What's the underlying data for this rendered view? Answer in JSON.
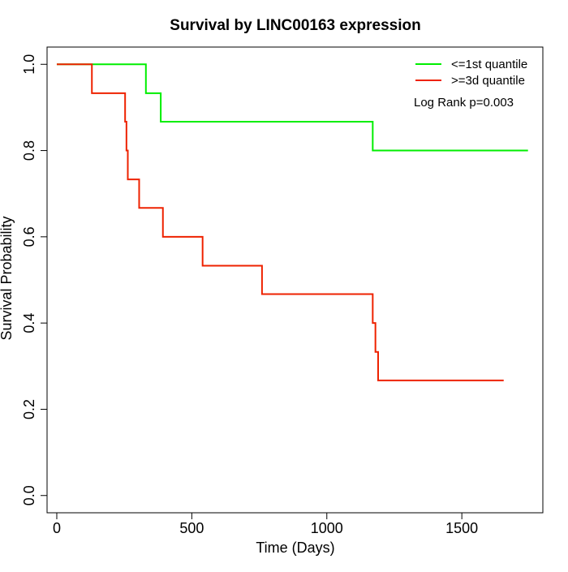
{
  "chart_data": {
    "type": "line",
    "title": "Survival by LINC00163 expression",
    "xlabel": "Time (Days)",
    "ylabel": "Survival Probability",
    "xlim": [
      -36,
      1800
    ],
    "ylim": [
      -0.04,
      1.04
    ],
    "x_ticks": [
      0,
      500,
      1000,
      1500
    ],
    "y_ticks": [
      0.0,
      0.2,
      0.4,
      0.6,
      0.8,
      1.0
    ],
    "x_tick_labels": [
      "0",
      "500",
      "1000",
      "1500"
    ],
    "y_tick_labels": [
      "0.0",
      "0.2",
      "0.4",
      "0.6",
      "0.8",
      "1.0"
    ],
    "grid": false,
    "legend_position": "top-right",
    "annotation": "Log Rank p=0.003",
    "series": [
      {
        "name": "<=1st quantile",
        "color": "#00ee00",
        "step": true,
        "x": [
          0,
          330,
          385,
          1170,
          1745
        ],
        "y": [
          1.0,
          0.933,
          0.867,
          0.8,
          0.8
        ]
      },
      {
        "name": ">=3d quantile",
        "color": "#ee2200",
        "step": true,
        "x": [
          0,
          130,
          253,
          258,
          263,
          305,
          393,
          540,
          760,
          1170,
          1180,
          1190,
          1655
        ],
        "y": [
          1.0,
          0.933,
          0.867,
          0.8,
          0.733,
          0.667,
          0.6,
          0.533,
          0.467,
          0.4,
          0.333,
          0.267,
          0.267
        ]
      }
    ]
  }
}
